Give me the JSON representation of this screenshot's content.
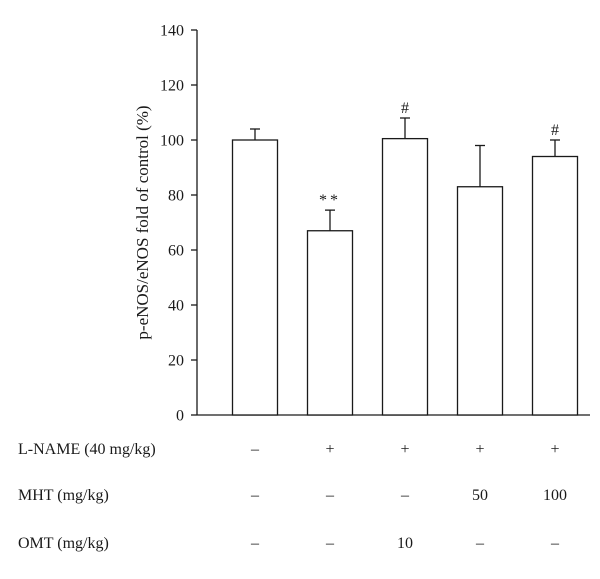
{
  "chart_data": {
    "type": "bar",
    "title": "",
    "xlabel": "",
    "ylabel": "p-eNOS/eNOS fold of control (%)",
    "ylim": [
      0,
      140
    ],
    "yticks": [
      0,
      20,
      40,
      60,
      80,
      100,
      120,
      140
    ],
    "grid": false,
    "legend": "none",
    "bar_color": "#ffffff",
    "edge_color": "#1a1a1a",
    "values": [
      100,
      67,
      100.5,
      83,
      94
    ],
    "errors": [
      4,
      7.5,
      7.5,
      15,
      6
    ],
    "annotations": [
      "",
      "**",
      "#",
      "",
      "#"
    ],
    "conditions": [
      {
        "label": "L-NAME (40 mg/kg)",
        "values": [
          "–",
          "+",
          "+",
          "+",
          "+"
        ]
      },
      {
        "label": "MHT (mg/kg)",
        "values": [
          "–",
          "–",
          "–",
          "50",
          "100"
        ]
      },
      {
        "label": "OMT (mg/kg)",
        "values": [
          "–",
          "–",
          "10",
          "–",
          "–"
        ]
      }
    ]
  }
}
